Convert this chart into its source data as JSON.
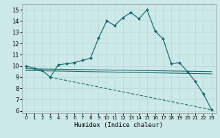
{
  "xlabel": "Humidex (Indice chaleur)",
  "xlim": [
    -0.5,
    23.5
  ],
  "ylim": [
    5.8,
    15.5
  ],
  "yticks": [
    6,
    7,
    8,
    9,
    10,
    11,
    12,
    13,
    14,
    15
  ],
  "xticks": [
    0,
    1,
    2,
    3,
    4,
    5,
    6,
    7,
    8,
    9,
    10,
    11,
    12,
    13,
    14,
    15,
    16,
    17,
    18,
    19,
    20,
    21,
    22,
    23
  ],
  "bg_color": "#cce8e8",
  "line_color": "#1a6b6b",
  "grid_color": "#b8d8d8",
  "line1_x": [
    0,
    1,
    2,
    3,
    4,
    5,
    6,
    7,
    8,
    9,
    10,
    11,
    12,
    13,
    14,
    15,
    16,
    17,
    18,
    19,
    20,
    21,
    22,
    23
  ],
  "line1_y": [
    10.0,
    9.8,
    9.6,
    9.0,
    10.1,
    10.2,
    10.3,
    10.5,
    10.7,
    12.5,
    14.0,
    13.6,
    14.3,
    14.75,
    14.2,
    15.0,
    13.1,
    12.4,
    10.2,
    10.3,
    9.5,
    8.6,
    7.5,
    6.1
  ],
  "line2_x": [
    0,
    23
  ],
  "line2_y": [
    9.75,
    9.5
  ],
  "line3_x": [
    0,
    23
  ],
  "line3_y": [
    9.6,
    9.3
  ],
  "line4_x": [
    3,
    23
  ],
  "line4_y": [
    9.0,
    6.1
  ]
}
